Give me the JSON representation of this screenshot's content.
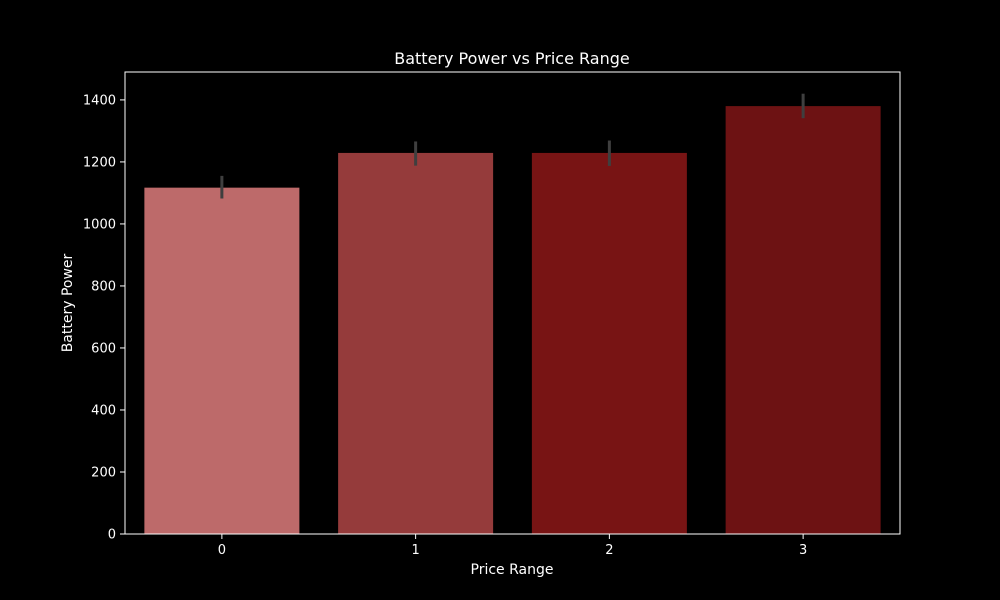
{
  "chart_data": {
    "type": "bar",
    "title": "Battery Power vs Price Range",
    "xlabel": "Price Range",
    "ylabel": "Battery Power",
    "categories": [
      "0",
      "1",
      "2",
      "3"
    ],
    "values": [
      1117,
      1229,
      1229,
      1380
    ],
    "error_bars": [
      {
        "low": 1082,
        "high": 1155
      },
      {
        "low": 1188,
        "high": 1266
      },
      {
        "low": 1187,
        "high": 1269
      },
      {
        "low": 1341,
        "high": 1420
      }
    ],
    "bar_colors": [
      "#bd6a6a",
      "#953b3b",
      "#781414",
      "#6d1213"
    ],
    "errorbar_color": "#3f3f3f",
    "ylim": [
      0,
      1490
    ],
    "yticks": [
      0,
      200,
      400,
      600,
      800,
      1000,
      1200,
      1400
    ],
    "grid": false,
    "background": "#000000",
    "text_color": "#ffffff"
  }
}
